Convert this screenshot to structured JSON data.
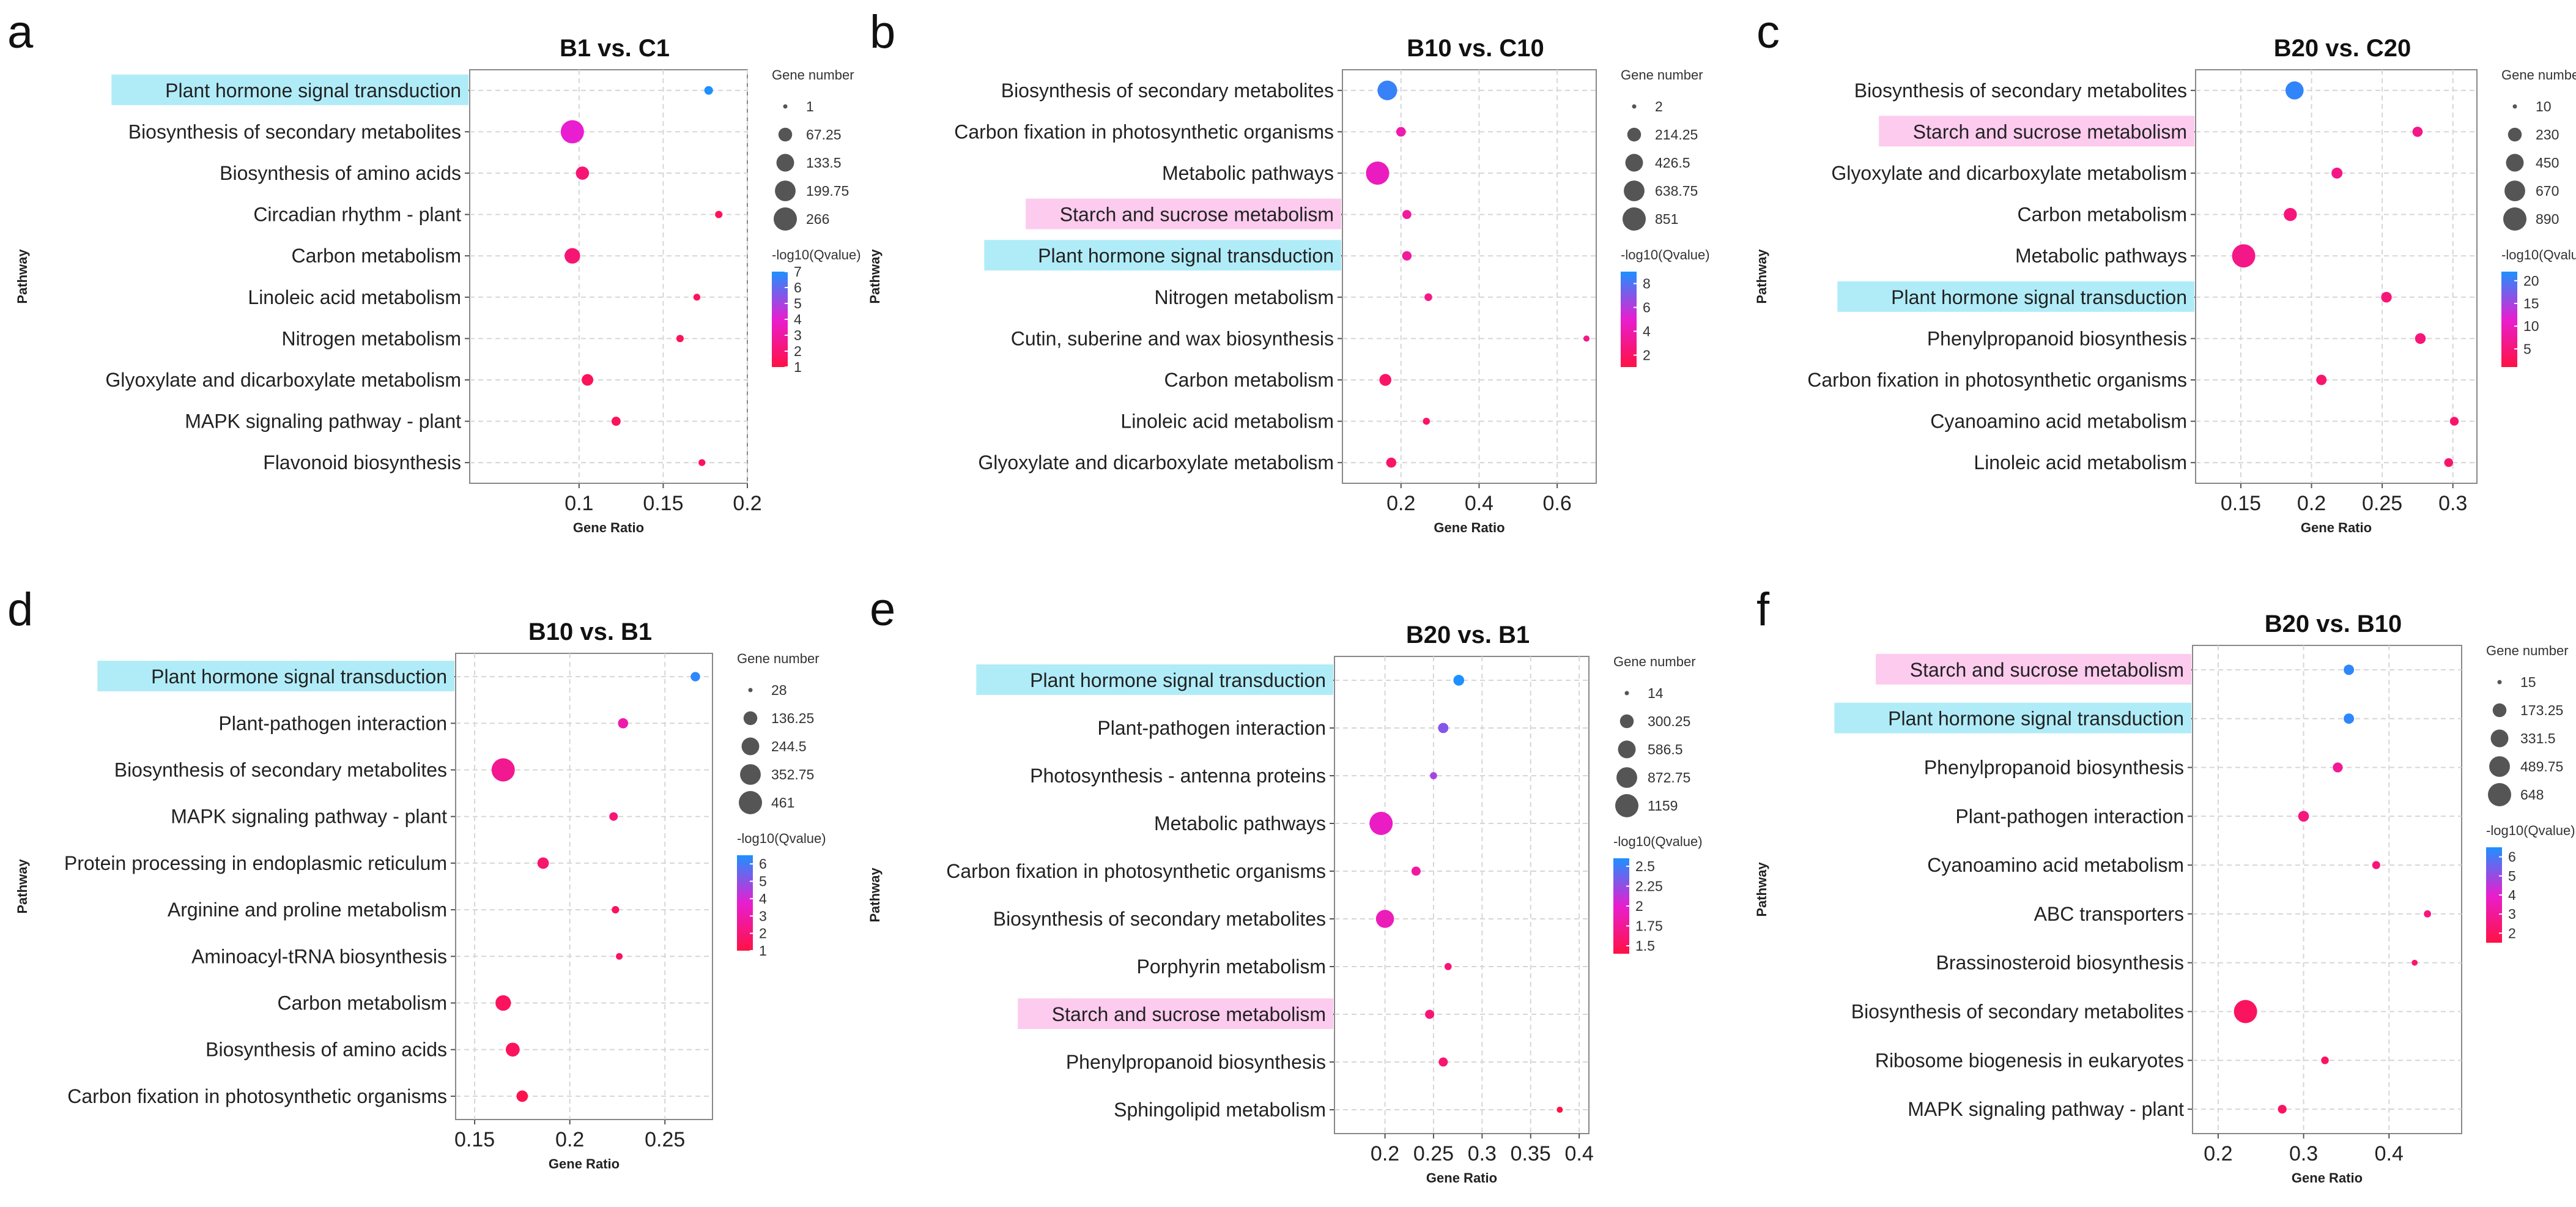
{
  "figure": {
    "x_axis_title": "Gene Ratio",
    "y_axis_title": "Pathway",
    "size_legend_title": "Gene number",
    "color_legend_title": "-log10(Qvalue)",
    "colors": {
      "low": "#ff1144",
      "mid": "#e81ed0",
      "high": "#1e90ff",
      "highlight_blue": "#b0ecf8",
      "highlight_pink": "#fccbee",
      "grid": "#d6d6d6",
      "frame": "#888888"
    }
  },
  "chart_data": [
    {
      "panel_letter": "a",
      "type": "scatter",
      "title": "B1 vs. C1",
      "xlabel": "Gene Ratio",
      "ylabel": "Pathway",
      "xlim": [
        0.035,
        0.2
      ],
      "xticks": [
        0.1,
        0.15,
        0.2
      ],
      "xtick_labels": [
        "0.1",
        "0.15",
        "0.2"
      ],
      "size_legend": [
        "1",
        "67.25",
        "133.5",
        "199.75",
        "266"
      ],
      "size_range": [
        1,
        266
      ],
      "color_ticks": [
        "7",
        "6",
        "5",
        "4",
        "3",
        "2",
        "1"
      ],
      "color_range": [
        1,
        7
      ],
      "pathways": [
        {
          "name": "Plant hormone signal transduction",
          "ratio": 0.177,
          "genes": 15,
          "q": 7,
          "highlight": "blue"
        },
        {
          "name": "Biosynthesis of secondary metabolites",
          "ratio": 0.096,
          "genes": 266,
          "q": 4,
          "highlight": ""
        },
        {
          "name": "Biosynthesis of amino acids",
          "ratio": 0.102,
          "genes": 60,
          "q": 2,
          "highlight": ""
        },
        {
          "name": "Circadian rhythm - plant",
          "ratio": 0.183,
          "genes": 8,
          "q": 1.5,
          "highlight": ""
        },
        {
          "name": "Carbon metabolism",
          "ratio": 0.096,
          "genes": 95,
          "q": 2,
          "highlight": ""
        },
        {
          "name": "Linoleic acid metabolism",
          "ratio": 0.17,
          "genes": 6,
          "q": 1.5,
          "highlight": ""
        },
        {
          "name": "Nitrogen metabolism",
          "ratio": 0.16,
          "genes": 8,
          "q": 1.5,
          "highlight": ""
        },
        {
          "name": "Glyoxylate and dicarboxylate metabolism",
          "ratio": 0.105,
          "genes": 40,
          "q": 1.5,
          "highlight": ""
        },
        {
          "name": "MAPK signaling pathway - plant",
          "ratio": 0.122,
          "genes": 18,
          "q": 1.5,
          "highlight": ""
        },
        {
          "name": "Flavonoid biosynthesis",
          "ratio": 0.173,
          "genes": 6,
          "q": 1.5,
          "highlight": ""
        }
      ]
    },
    {
      "panel_letter": "b",
      "type": "scatter",
      "title": "B10 vs. C10",
      "xlabel": "Gene Ratio",
      "ylabel": "Pathway",
      "xlim": [
        0.05,
        0.7
      ],
      "xticks": [
        0.2,
        0.4,
        0.6
      ],
      "xtick_labels": [
        "0.2",
        "0.4",
        "0.6"
      ],
      "size_legend": [
        "2",
        "214.25",
        "426.5",
        "638.75",
        "851"
      ],
      "size_range": [
        2,
        851
      ],
      "color_ticks": [
        "8",
        "6",
        "4",
        "2"
      ],
      "color_range": [
        1,
        9
      ],
      "pathways": [
        {
          "name": "Biosynthesis of secondary metabolites",
          "ratio": 0.165,
          "genes": 560,
          "q": 8.5,
          "highlight": ""
        },
        {
          "name": "Carbon fixation in photosynthetic organisms",
          "ratio": 0.2,
          "genes": 70,
          "q": 4,
          "highlight": ""
        },
        {
          "name": "Metabolic pathways",
          "ratio": 0.14,
          "genes": 851,
          "q": 4.5,
          "highlight": ""
        },
        {
          "name": "Starch and sucrose metabolism",
          "ratio": 0.215,
          "genes": 55,
          "q": 3.5,
          "highlight": "pink"
        },
        {
          "name": "Plant hormone signal transduction",
          "ratio": 0.215,
          "genes": 65,
          "q": 3.5,
          "highlight": "blue"
        },
        {
          "name": "Nitrogen metabolism",
          "ratio": 0.27,
          "genes": 30,
          "q": 3,
          "highlight": ""
        },
        {
          "name": "Cutin, suberine and wax biosynthesis",
          "ratio": 0.675,
          "genes": 10,
          "q": 3,
          "highlight": ""
        },
        {
          "name": "Carbon metabolism",
          "ratio": 0.16,
          "genes": 140,
          "q": 2,
          "highlight": ""
        },
        {
          "name": "Linoleic acid metabolism",
          "ratio": 0.265,
          "genes": 20,
          "q": 2,
          "highlight": ""
        },
        {
          "name": "Glyoxylate and dicarboxylate metabolism",
          "ratio": 0.175,
          "genes": 80,
          "q": 2,
          "highlight": ""
        }
      ]
    },
    {
      "panel_letter": "c",
      "type": "scatter",
      "title": "B20 vs. C20",
      "xlabel": "Gene Ratio",
      "ylabel": "Pathway",
      "xlim": [
        0.118,
        0.317
      ],
      "xticks": [
        0.15,
        0.2,
        0.25,
        0.3
      ],
      "xtick_labels": [
        "0.15",
        "0.2",
        "0.25",
        "0.3"
      ],
      "size_legend": [
        "10",
        "230",
        "450",
        "670",
        "890"
      ],
      "size_range": [
        10,
        890
      ],
      "color_ticks": [
        "20",
        "15",
        "10",
        "5"
      ],
      "color_range": [
        1,
        22
      ],
      "pathways": [
        {
          "name": "Biosynthesis of secondary metabolites",
          "ratio": 0.188,
          "genes": 480,
          "q": 21,
          "highlight": ""
        },
        {
          "name": "Starch and sucrose metabolism",
          "ratio": 0.275,
          "genes": 95,
          "q": 6,
          "highlight": "pink"
        },
        {
          "name": "Glyoxylate and dicarboxylate metabolism",
          "ratio": 0.218,
          "genes": 120,
          "q": 6,
          "highlight": ""
        },
        {
          "name": "Carbon metabolism",
          "ratio": 0.185,
          "genes": 200,
          "q": 5,
          "highlight": ""
        },
        {
          "name": "Metabolic pathways",
          "ratio": 0.152,
          "genes": 890,
          "q": 6,
          "highlight": ""
        },
        {
          "name": "Plant hormone signal transduction",
          "ratio": 0.253,
          "genes": 110,
          "q": 5,
          "highlight": "blue"
        },
        {
          "name": "Phenylpropanoid biosynthesis",
          "ratio": 0.277,
          "genes": 110,
          "q": 5,
          "highlight": ""
        },
        {
          "name": "Carbon fixation in photosynthetic organisms",
          "ratio": 0.207,
          "genes": 100,
          "q": 4,
          "highlight": ""
        },
        {
          "name": "Cyanoamino acid metabolism",
          "ratio": 0.301,
          "genes": 60,
          "q": 4,
          "highlight": ""
        },
        {
          "name": "Linoleic acid metabolism",
          "ratio": 0.297,
          "genes": 60,
          "q": 4,
          "highlight": ""
        }
      ]
    },
    {
      "panel_letter": "d",
      "type": "scatter",
      "title": "B10 vs. B1",
      "xlabel": "Gene Ratio",
      "ylabel": "Pathway",
      "xlim": [
        0.14,
        0.275
      ],
      "xticks": [
        0.15,
        0.2,
        0.25
      ],
      "xtick_labels": [
        "0.15",
        "0.2",
        "0.25"
      ],
      "size_legend": [
        "28",
        "136.25",
        "244.5",
        "352.75",
        "461"
      ],
      "size_range": [
        28,
        461
      ],
      "color_ticks": [
        "6",
        "5",
        "4",
        "3",
        "2",
        "1"
      ],
      "color_range": [
        1,
        6.5
      ],
      "pathways": [
        {
          "name": "Plant hormone signal transduction",
          "ratio": 0.266,
          "genes": 60,
          "q": 6.3,
          "highlight": "blue"
        },
        {
          "name": "Plant-pathogen interaction",
          "ratio": 0.228,
          "genes": 70,
          "q": 3,
          "highlight": ""
        },
        {
          "name": "Biosynthesis of secondary metabolites",
          "ratio": 0.165,
          "genes": 461,
          "q": 2.5,
          "highlight": ""
        },
        {
          "name": "MAPK signaling pathway - plant",
          "ratio": 0.223,
          "genes": 50,
          "q": 2,
          "highlight": ""
        },
        {
          "name": "Protein processing in endoplasmic reticulum",
          "ratio": 0.186,
          "genes": 90,
          "q": 1.8,
          "highlight": ""
        },
        {
          "name": "Arginine and proline metabolism",
          "ratio": 0.224,
          "genes": 40,
          "q": 1.5,
          "highlight": ""
        },
        {
          "name": "Aminoacyl-tRNA biosynthesis",
          "ratio": 0.226,
          "genes": 35,
          "q": 1.5,
          "highlight": ""
        },
        {
          "name": "Carbon metabolism",
          "ratio": 0.165,
          "genes": 180,
          "q": 1.5,
          "highlight": ""
        },
        {
          "name": "Biosynthesis of amino acids",
          "ratio": 0.17,
          "genes": 140,
          "q": 1.5,
          "highlight": ""
        },
        {
          "name": "Carbon fixation in photosynthetic organisms",
          "ratio": 0.175,
          "genes": 90,
          "q": 1.2,
          "highlight": ""
        }
      ]
    },
    {
      "panel_letter": "e",
      "type": "scatter",
      "title": "B20 vs. B1",
      "xlabel": "Gene Ratio",
      "ylabel": "Pathway",
      "xlim": [
        0.148,
        0.41
      ],
      "xticks": [
        0.2,
        0.25,
        0.3,
        0.35,
        0.4
      ],
      "xtick_labels": [
        "0.2",
        "0.25",
        "0.3",
        "0.35",
        "0.4"
      ],
      "size_legend": [
        "14",
        "300.25",
        "586.5",
        "872.75",
        "1159"
      ],
      "size_range": [
        14,
        1159
      ],
      "color_ticks": [
        "2.5",
        "2.25",
        "2",
        "1.75",
        "1.5"
      ],
      "color_range": [
        1.4,
        2.6
      ],
      "pathways": [
        {
          "name": "Plant hormone signal transduction",
          "ratio": 0.276,
          "genes": 150,
          "q": 2.6,
          "highlight": "blue"
        },
        {
          "name": "Plant-pathogen interaction",
          "ratio": 0.26,
          "genes": 130,
          "q": 2.3,
          "highlight": ""
        },
        {
          "name": "Photosynthesis - antenna proteins",
          "ratio": 0.25,
          "genes": 40,
          "q": 2.2,
          "highlight": ""
        },
        {
          "name": "Metabolic pathways",
          "ratio": 0.196,
          "genes": 1159,
          "q": 1.95,
          "highlight": ""
        },
        {
          "name": "Carbon fixation in photosynthetic organisms",
          "ratio": 0.232,
          "genes": 90,
          "q": 1.8,
          "highlight": ""
        },
        {
          "name": "Biosynthesis of secondary metabolites",
          "ratio": 0.2,
          "genes": 620,
          "q": 1.9,
          "highlight": ""
        },
        {
          "name": "Porphyrin metabolism",
          "ratio": 0.265,
          "genes": 40,
          "q": 1.6,
          "highlight": ""
        },
        {
          "name": "Starch and sucrose metabolism",
          "ratio": 0.246,
          "genes": 90,
          "q": 1.6,
          "highlight": "pink"
        },
        {
          "name": "Phenylpropanoid biosynthesis",
          "ratio": 0.26,
          "genes": 90,
          "q": 1.6,
          "highlight": ""
        },
        {
          "name": "Sphingolipid metabolism",
          "ratio": 0.38,
          "genes": 25,
          "q": 1.4,
          "highlight": ""
        }
      ]
    },
    {
      "panel_letter": "f",
      "type": "scatter",
      "title": "B20 vs. B10",
      "xlabel": "Gene Ratio",
      "ylabel": "Pathway",
      "xlim": [
        0.17,
        0.485
      ],
      "xticks": [
        0.2,
        0.3,
        0.4
      ],
      "xtick_labels": [
        "0.2",
        "0.3",
        "0.4"
      ],
      "size_legend": [
        "15",
        "173.25",
        "331.5",
        "489.75",
        "648"
      ],
      "size_range": [
        15,
        648
      ],
      "color_ticks": [
        "6",
        "5",
        "4",
        "3",
        "2"
      ],
      "color_range": [
        1.5,
        6.5
      ],
      "pathways": [
        {
          "name": "Starch and sucrose metabolism",
          "ratio": 0.353,
          "genes": 80,
          "q": 6.3,
          "highlight": "pink"
        },
        {
          "name": "Plant hormone signal transduction",
          "ratio": 0.353,
          "genes": 80,
          "q": 6.3,
          "highlight": "blue"
        },
        {
          "name": "Phenylpropanoid biosynthesis",
          "ratio": 0.34,
          "genes": 70,
          "q": 3,
          "highlight": ""
        },
        {
          "name": "Plant-pathogen interaction",
          "ratio": 0.3,
          "genes": 90,
          "q": 2.5,
          "highlight": ""
        },
        {
          "name": "Cyanoamino acid metabolism",
          "ratio": 0.385,
          "genes": 40,
          "q": 2.5,
          "highlight": ""
        },
        {
          "name": "ABC transporters",
          "ratio": 0.445,
          "genes": 30,
          "q": 2.5,
          "highlight": ""
        },
        {
          "name": "Brassinosteroid biosynthesis",
          "ratio": 0.43,
          "genes": 20,
          "q": 2.2,
          "highlight": ""
        },
        {
          "name": "Biosynthesis of secondary metabolites",
          "ratio": 0.232,
          "genes": 648,
          "q": 2,
          "highlight": ""
        },
        {
          "name": "Ribosome biogenesis in eukaryotes",
          "ratio": 0.325,
          "genes": 35,
          "q": 2,
          "highlight": ""
        },
        {
          "name": "MAPK signaling pathway - plant",
          "ratio": 0.275,
          "genes": 50,
          "q": 2,
          "highlight": ""
        }
      ]
    }
  ]
}
